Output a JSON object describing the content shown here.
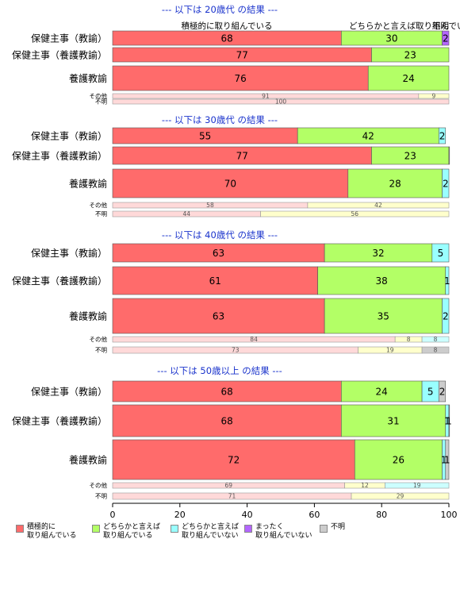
{
  "chart_data": {
    "type": "bar",
    "orientation": "horizontal-stacked-percent",
    "xlim": [
      0,
      100
    ],
    "x_ticks": [
      "0",
      "20",
      "40",
      "60",
      "80",
      "100"
    ],
    "colors": {
      "main": [
        "#ff6b6b",
        "#b3ff66",
        "#99ffff",
        "#b366ff",
        "#cccccc"
      ],
      "minor": [
        "#ffd9d9",
        "#ffffcc",
        "#ccffff",
        "#e6ccff",
        "#cccccc"
      ]
    },
    "legend": [
      {
        "line1": "積極的に",
        "line2": "取り組んでいる"
      },
      {
        "line1": "どちらかと言えば",
        "line2": "取り組んでいる"
      },
      {
        "line1": "どちらかと言えば",
        "line2": "取り組んでいない"
      },
      {
        "line1": "まったく",
        "line2": "取り組んでいない"
      },
      {
        "line1": "不明",
        "line2": ""
      }
    ],
    "top_labels": [
      "積極的に取り組んでいる",
      "どちらかと言えば取り組んでいる",
      "不明"
    ],
    "panels": [
      {
        "title": "--- 以下は 20歳代 の結果 ---",
        "rows": [
          {
            "label": "保健主事（教諭）",
            "size": "main",
            "values": [
              68,
              30,
              0,
              2,
              0
            ],
            "labels": [
              "68",
              "30",
              "",
              "2",
              ""
            ]
          },
          {
            "label": "保健主事（養護教諭）",
            "size": "main",
            "values": [
              77,
              23,
              0,
              0,
              0
            ],
            "labels": [
              "77",
              "23",
              "",
              "",
              ""
            ]
          },
          {
            "label": "養護教諭",
            "size": "main",
            "values": [
              76,
              24,
              0,
              0,
              0
            ],
            "labels": [
              "76",
              "24",
              "",
              "",
              ""
            ]
          },
          {
            "label": "その他",
            "size": "minor",
            "values": [
              91,
              9,
              0,
              0,
              0
            ],
            "labels": [
              "91",
              "9",
              "",
              "",
              ""
            ]
          },
          {
            "label": "不明",
            "size": "minor",
            "values": [
              100,
              0,
              0,
              0,
              0
            ],
            "labels": [
              "100",
              "",
              "",
              "",
              ""
            ]
          }
        ]
      },
      {
        "title": "--- 以下は 30歳代 の結果 ---",
        "rows": [
          {
            "label": "保健主事（教諭）",
            "size": "main",
            "values": [
              55,
              42,
              2,
              0,
              0
            ],
            "labels": [
              "55",
              "42",
              "2",
              "",
              ""
            ]
          },
          {
            "label": "保健主事（養護教諭）",
            "size": "main",
            "values": [
              77,
              23,
              0,
              0,
              0.5
            ],
            "labels": [
              "77",
              "23",
              "",
              "",
              ""
            ]
          },
          {
            "label": "養護教諭",
            "size": "main",
            "values": [
              70,
              28,
              2,
              0,
              0
            ],
            "labels": [
              "70",
              "28",
              "2",
              "",
              ""
            ]
          },
          {
            "label": "その他",
            "size": "minor",
            "values": [
              58,
              42,
              0,
              0,
              0
            ],
            "labels": [
              "58",
              "42",
              "",
              "",
              ""
            ]
          },
          {
            "label": "不明",
            "size": "minor",
            "values": [
              44,
              56,
              0,
              0,
              0
            ],
            "labels": [
              "44",
              "56",
              "",
              "",
              ""
            ]
          }
        ]
      },
      {
        "title": "--- 以下は 40歳代 の結果 ---",
        "rows": [
          {
            "label": "保健主事（教諭）",
            "size": "main",
            "values": [
              63,
              32,
              5,
              0,
              0
            ],
            "labels": [
              "63",
              "32",
              "5",
              "",
              ""
            ]
          },
          {
            "label": "保健主事（養護教諭）",
            "size": "main",
            "values": [
              61,
              38,
              1,
              0,
              0
            ],
            "labels": [
              "61",
              "38",
              "1",
              "",
              ""
            ]
          },
          {
            "label": "養護教諭",
            "size": "main",
            "values": [
              63,
              35,
              2,
              0,
              0
            ],
            "labels": [
              "63",
              "35",
              "2",
              "",
              ""
            ]
          },
          {
            "label": "その他",
            "size": "minor",
            "values": [
              84,
              8,
              8,
              0,
              0
            ],
            "labels": [
              "84",
              "8",
              "8",
              "",
              ""
            ]
          },
          {
            "label": "不明",
            "size": "minor",
            "values": [
              73,
              19,
              0,
              0,
              8
            ],
            "labels": [
              "73",
              "19",
              "",
              "",
              "8"
            ]
          }
        ]
      },
      {
        "title": "--- 以下は 50歳以上 の結果 ---",
        "rows": [
          {
            "label": "保健主事（教諭）",
            "size": "main",
            "values": [
              68,
              24,
              5,
              0,
              2
            ],
            "labels": [
              "68",
              "24",
              "5",
              "",
              "2"
            ]
          },
          {
            "label": "保健主事（養護教諭）",
            "size": "main",
            "values": [
              68,
              31,
              1,
              0,
              1
            ],
            "labels": [
              "68",
              "31",
              "1",
              "",
              "1"
            ]
          },
          {
            "label": "養護教諭",
            "size": "main",
            "values": [
              72,
              26,
              1,
              0,
              1
            ],
            "labels": [
              "72",
              "26",
              "1",
              "",
              "1"
            ]
          },
          {
            "label": "その他",
            "size": "minor",
            "values": [
              69,
              12,
              19,
              0,
              0
            ],
            "labels": [
              "69",
              "12",
              "19",
              "",
              ""
            ]
          },
          {
            "label": "不明",
            "size": "minor",
            "values": [
              71,
              29,
              0,
              0,
              0
            ],
            "labels": [
              "71",
              "29",
              "",
              "",
              ""
            ]
          }
        ]
      }
    ]
  }
}
